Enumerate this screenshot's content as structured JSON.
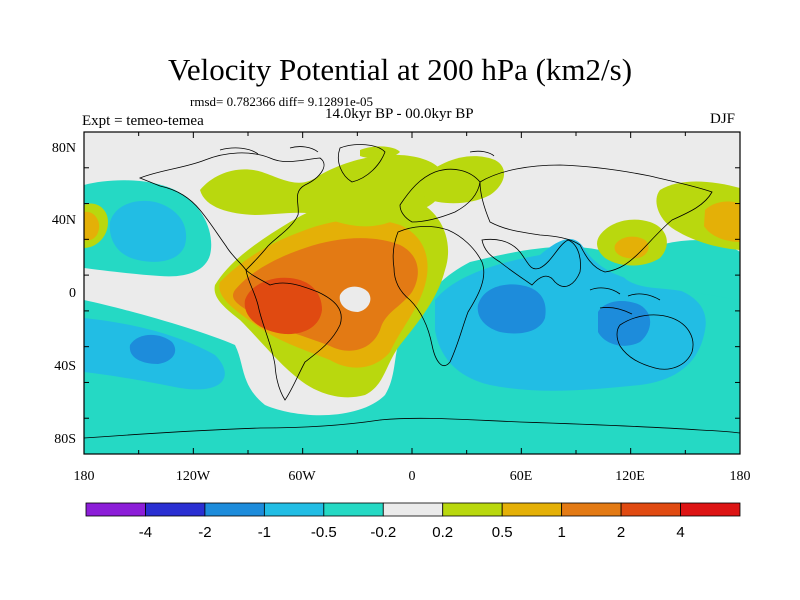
{
  "title": "Velocity Potential at 200 hPa (km2/s)",
  "stats_line": "rmsd= 0.782366 diff= 9.12891e-05",
  "period_label": "14.0kyr BP - 00.0kyr BP",
  "experiment_label": "Expt = temeo-temea",
  "season_label": "DJF",
  "map": {
    "lon_ticks": [
      "180",
      "120W",
      "60W",
      "0",
      "60E",
      "120E",
      "180"
    ],
    "lat_ticks": [
      "80N",
      "40N",
      "0",
      "40S",
      "80S"
    ]
  },
  "colorbar": {
    "labels": [
      "-4",
      "-2",
      "-1",
      "-0.5",
      "-0.2",
      "0.2",
      "0.5",
      "1",
      "2",
      "4"
    ],
    "colors": [
      "#8c1ed8",
      "#2a2fd2",
      "#1d8cdb",
      "#22bde4",
      "#25d9c4",
      "#ebebeb",
      "#b9d80e",
      "#e4b007",
      "#e37a14",
      "#e04a11",
      "#dd1414"
    ]
  },
  "palette": {
    "neg_strong": "#1d8cdb",
    "neg_mid": "#22bde4",
    "neg_weak": "#25d9c4",
    "neutral": "#ebebeb",
    "pos_weak": "#b9d80e",
    "pos_mid": "#e4b007",
    "pos_strong": "#e37a14",
    "pos_max": "#e04a11"
  }
}
